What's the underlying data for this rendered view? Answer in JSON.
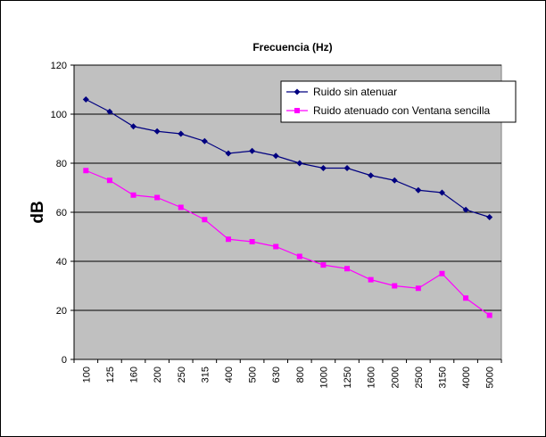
{
  "chart_data": {
    "type": "line",
    "title": "Frecuencia (Hz)",
    "xlabel": "",
    "ylabel": "dB",
    "categories": [
      "100",
      "125",
      "160",
      "200",
      "250",
      "315",
      "400",
      "500",
      "630",
      "800",
      "1000",
      "1250",
      "1600",
      "2000",
      "2500",
      "3150",
      "4000",
      "5000"
    ],
    "ylim": [
      0,
      120
    ],
    "yticks": [
      0,
      20,
      40,
      60,
      80,
      100,
      120
    ],
    "grid": true,
    "legend_position": "top-right",
    "series": [
      {
        "name": "Ruido sin atenuar",
        "color": "#000080",
        "marker": "diamond",
        "values": [
          106,
          101,
          95,
          93,
          92,
          89,
          84,
          85,
          83,
          80,
          78,
          78,
          75,
          73,
          69,
          68,
          61,
          58
        ]
      },
      {
        "name": "Ruido atenuado con Ventana sencilla",
        "color": "#ff00ff",
        "marker": "square",
        "values": [
          77,
          73,
          67,
          66,
          62,
          57,
          49,
          48,
          46,
          42,
          38.5,
          37,
          32.5,
          30,
          29,
          35,
          25,
          18
        ]
      }
    ]
  },
  "colors": {
    "plot_background": "#c0c0c0",
    "gridline": "#000000"
  }
}
